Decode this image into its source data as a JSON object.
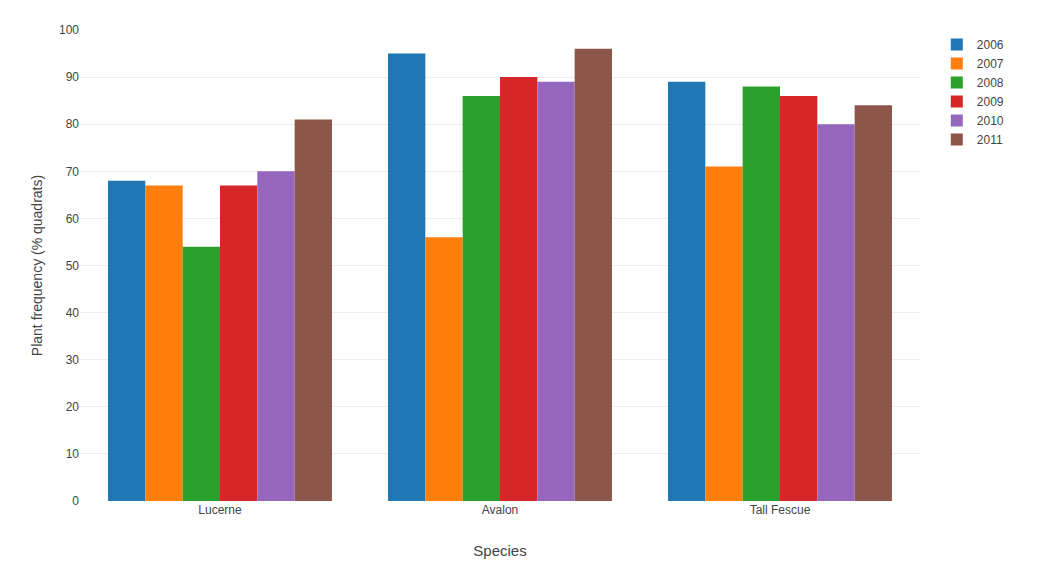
{
  "chart_data": {
    "type": "bar",
    "categories": [
      "Lucerne",
      "Avalon",
      "Tall Fescue"
    ],
    "series": [
      {
        "name": "2006",
        "values": [
          68,
          95,
          89
        ]
      },
      {
        "name": "2007",
        "values": [
          67,
          56,
          71
        ]
      },
      {
        "name": "2008",
        "values": [
          54,
          86,
          88
        ]
      },
      {
        "name": "2009",
        "values": [
          67,
          90,
          86
        ]
      },
      {
        "name": "2010",
        "values": [
          70,
          89,
          80
        ]
      },
      {
        "name": "2011",
        "values": [
          81,
          96,
          84
        ]
      }
    ],
    "xlabel": "Species",
    "ylabel": "Plant frequency (% quadrats)",
    "ylim": [
      0,
      100
    ],
    "yticks": [
      0,
      10,
      20,
      30,
      40,
      50,
      60,
      70,
      80,
      90,
      100
    ],
    "grid": true,
    "legend": "upper right"
  }
}
